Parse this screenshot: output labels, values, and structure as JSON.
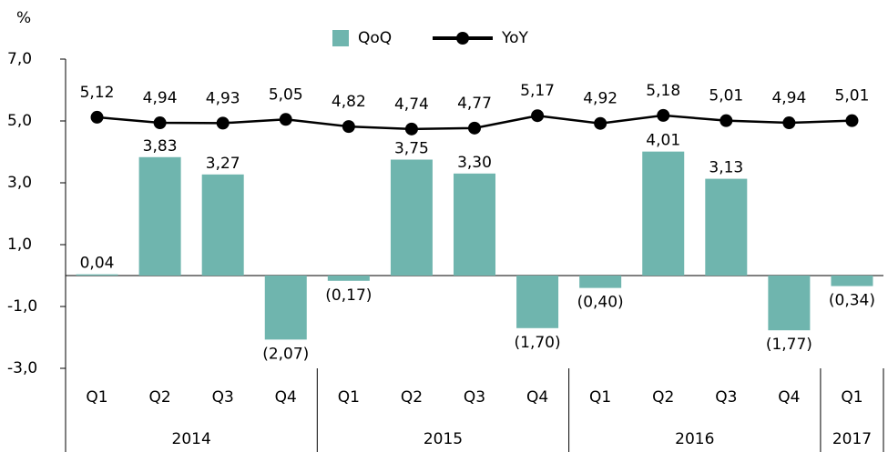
{
  "chart_data": {
    "type": "bar_line",
    "y_label": "%",
    "groups": [
      {
        "label": "2014",
        "quarters": [
          "Q1",
          "Q2",
          "Q3",
          "Q4"
        ]
      },
      {
        "label": "2015",
        "quarters": [
          "Q1",
          "Q2",
          "Q3",
          "Q4"
        ]
      },
      {
        "label": "2016",
        "quarters": [
          "Q1",
          "Q2",
          "Q3",
          "Q4"
        ]
      },
      {
        "label": "2017",
        "quarters": [
          "Q1"
        ]
      }
    ],
    "series": [
      {
        "name": "QoQ",
        "type": "bar",
        "color": "#6fb5ae",
        "values": [
          0.04,
          3.83,
          3.27,
          -2.07,
          -0.17,
          3.75,
          3.3,
          -1.7,
          -0.4,
          4.01,
          3.13,
          -1.77,
          -0.34
        ],
        "value_labels": [
          "0,04",
          "3,83",
          "3,27",
          "(2,07)",
          "(0,17)",
          "3,75",
          "3,30",
          "(1,70)",
          "(0,40)",
          "4,01",
          "3,13",
          "(1,77)",
          "(0,34)"
        ]
      },
      {
        "name": "YoY",
        "type": "line",
        "color": "#000000",
        "values": [
          5.12,
          4.94,
          4.93,
          5.05,
          4.82,
          4.74,
          4.77,
          5.17,
          4.92,
          5.18,
          5.01,
          4.94,
          5.01
        ],
        "value_labels": [
          "5,12",
          "4,94",
          "4,93",
          "5,05",
          "4,82",
          "4,74",
          "4,77",
          "5,17",
          "4,92",
          "5,18",
          "5,01",
          "4,94",
          "5,01"
        ]
      }
    ],
    "ylim": [
      -3,
      7
    ],
    "yticks": [
      {
        "value": -3,
        "label": "-3,0"
      },
      {
        "value": -1,
        "label": "-1,0"
      },
      {
        "value": 1,
        "label": "1,0"
      },
      {
        "value": 3,
        "label": "3,0"
      },
      {
        "value": 5,
        "label": "5,0"
      },
      {
        "value": 7,
        "label": "7,0"
      }
    ],
    "legend": "top"
  }
}
